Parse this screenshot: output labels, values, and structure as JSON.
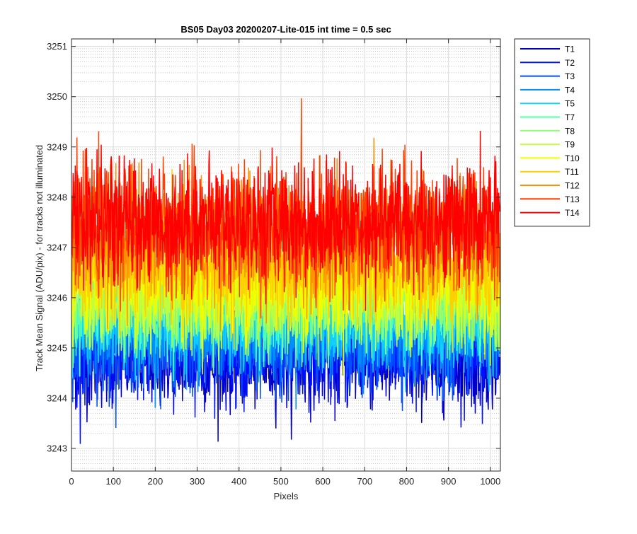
{
  "chart_data": {
    "type": "line",
    "title": "BS05 Day03 20200207-Lite-015 int time = 0.5 sec",
    "xlabel": "Pixels",
    "ylabel": "Track Mean Signal (ADU/pix) - for tracks not illuminated",
    "xlim": [
      0,
      1024
    ],
    "ylim": [
      3242.55,
      3251.15
    ],
    "x_ticks": [
      0,
      100,
      200,
      300,
      400,
      500,
      600,
      700,
      800,
      900,
      1000
    ],
    "y_ticks": [
      3243,
      3244,
      3245,
      3246,
      3247,
      3248,
      3249,
      3250,
      3251
    ],
    "grid": true,
    "minor_grid": true,
    "legend_position": "outside-top-right",
    "x_points": 1024,
    "series": [
      {
        "name": "T1",
        "color": "#0000c8",
        "mean": 3244.7,
        "std": 0.45
      },
      {
        "name": "T2",
        "color": "#0010ff",
        "mean": 3244.9,
        "std": 0.45
      },
      {
        "name": "T3",
        "color": "#0050ff",
        "mean": 3245.1,
        "std": 0.45
      },
      {
        "name": "T4",
        "color": "#0090ff",
        "mean": 3245.3,
        "std": 0.45
      },
      {
        "name": "T5",
        "color": "#10d0ff",
        "mean": 3245.5,
        "std": 0.45
      },
      {
        "name": "T7",
        "color": "#50ffb0",
        "mean": 3245.9,
        "std": 0.5
      },
      {
        "name": "T8",
        "color": "#90ff70",
        "mean": 3246.0,
        "std": 0.5
      },
      {
        "name": "T9",
        "color": "#c0ff40",
        "mean": 3246.1,
        "std": 0.5
      },
      {
        "name": "T10",
        "color": "#f0ff00",
        "mean": 3246.3,
        "std": 0.55
      },
      {
        "name": "T11",
        "color": "#ffd000",
        "mean": 3246.6,
        "std": 0.55
      },
      {
        "name": "T12",
        "color": "#ff9000",
        "mean": 3247.2,
        "std": 0.6
      },
      {
        "name": "T13",
        "color": "#ff4000",
        "mean": 3247.4,
        "std": 0.6
      },
      {
        "name": "T14",
        "color": "#ff0000",
        "mean": 3247.5,
        "std": 0.6
      }
    ]
  }
}
